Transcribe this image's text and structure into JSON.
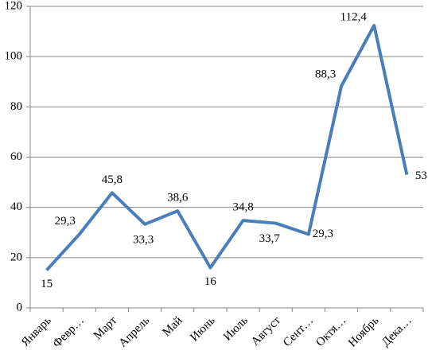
{
  "chart_data": {
    "type": "line",
    "categories": [
      "Январь",
      "Февр…",
      "Март",
      "Апрель",
      "Май",
      "Июнь",
      "Июль",
      "Август",
      "Сент…",
      "Октя…",
      "Ноябрь",
      "Дека…"
    ],
    "values": [
      15,
      29.3,
      45.8,
      33.3,
      38.6,
      16,
      34.8,
      33.7,
      29.3,
      88.3,
      112.4,
      53
    ],
    "value_labels": [
      "15",
      "29,3",
      "45,8",
      "33,3",
      "38,6",
      "16",
      "34,8",
      "33,7",
      "29,3",
      "88,3",
      "112,4",
      "53"
    ],
    "color": "#4a7ebb",
    "ylim": [
      0,
      120
    ],
    "yticks": [
      0,
      20,
      40,
      60,
      80,
      100,
      120
    ],
    "grid": true
  }
}
